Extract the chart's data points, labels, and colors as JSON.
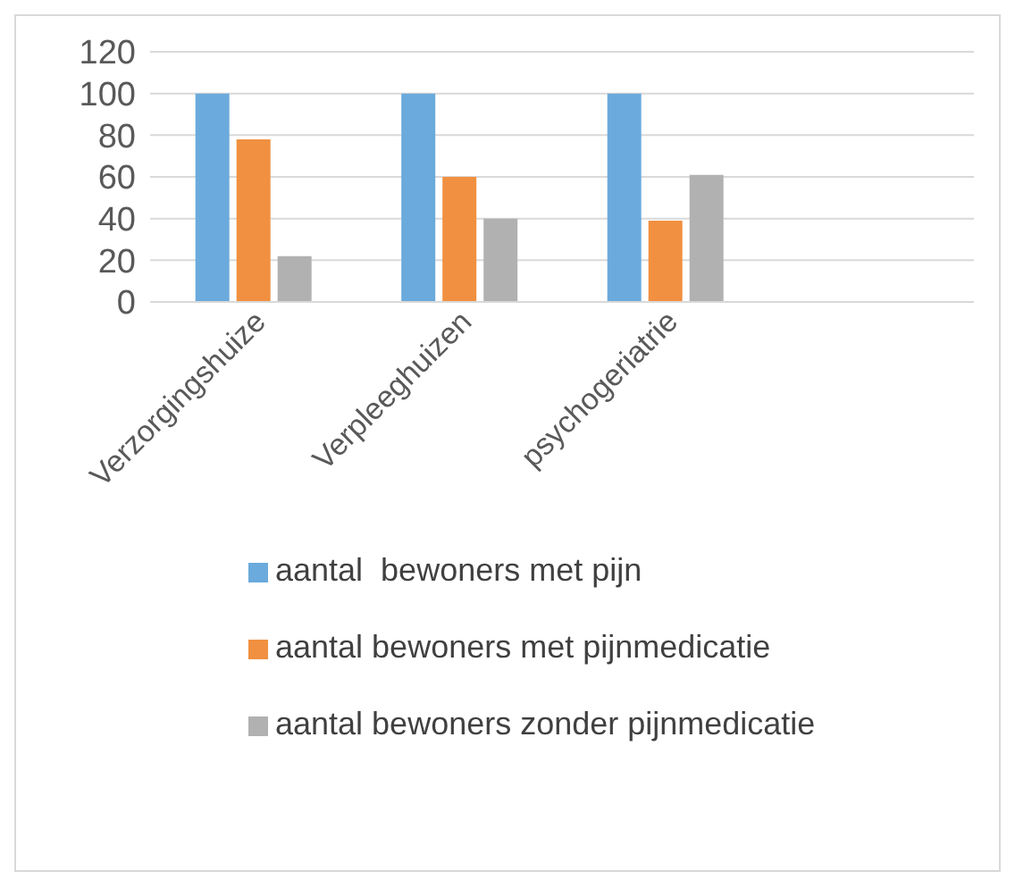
{
  "chart_data": {
    "type": "bar",
    "categories": [
      "Verzorgingshuize",
      "Verpleeghuizen",
      "psychogeriatrie",
      null
    ],
    "series": [
      {
        "name": "aantal  bewoners met pijn",
        "color": "#6aaadc",
        "values": [
          100,
          100,
          100,
          null
        ]
      },
      {
        "name": "aantal bewoners met pijnmedicatie",
        "color": "#f19040",
        "values": [
          78,
          60,
          39,
          null
        ]
      },
      {
        "name": "aantal bewoners zonder pijnmedicatie",
        "color": "#b1b1b1",
        "values": [
          22,
          40,
          61,
          null
        ]
      }
    ],
    "ylim": [
      0,
      120
    ],
    "yticks": [
      0,
      20,
      40,
      60,
      80,
      100,
      120
    ],
    "grid": "y",
    "legend": "bottom"
  }
}
